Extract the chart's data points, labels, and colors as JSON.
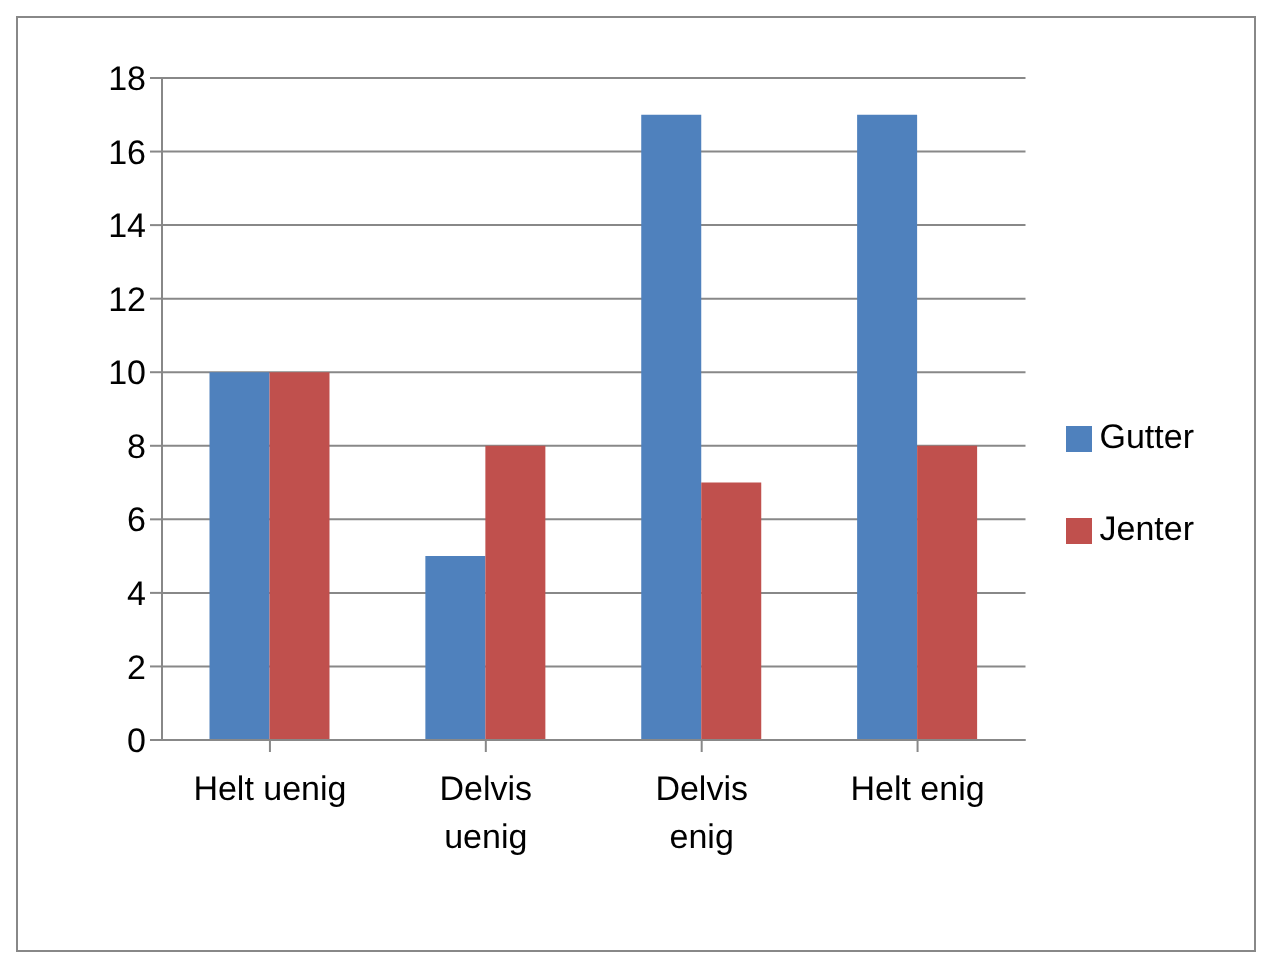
{
  "chart_data": {
    "type": "bar",
    "categories": [
      "Helt uenig",
      "Delvis uenig",
      "Delvis enig",
      "Helt enig"
    ],
    "series": [
      {
        "name": "Gutter",
        "color": "#4f81bd",
        "values": [
          10,
          5,
          17,
          17
        ]
      },
      {
        "name": "Jenter",
        "color": "#c0504d",
        "values": [
          10,
          8,
          7,
          8
        ]
      }
    ],
    "ylim": [
      0,
      18
    ],
    "yticks": [
      0,
      2,
      4,
      6,
      8,
      10,
      12,
      14,
      16,
      18
    ],
    "grid": "y",
    "legend": "right"
  }
}
